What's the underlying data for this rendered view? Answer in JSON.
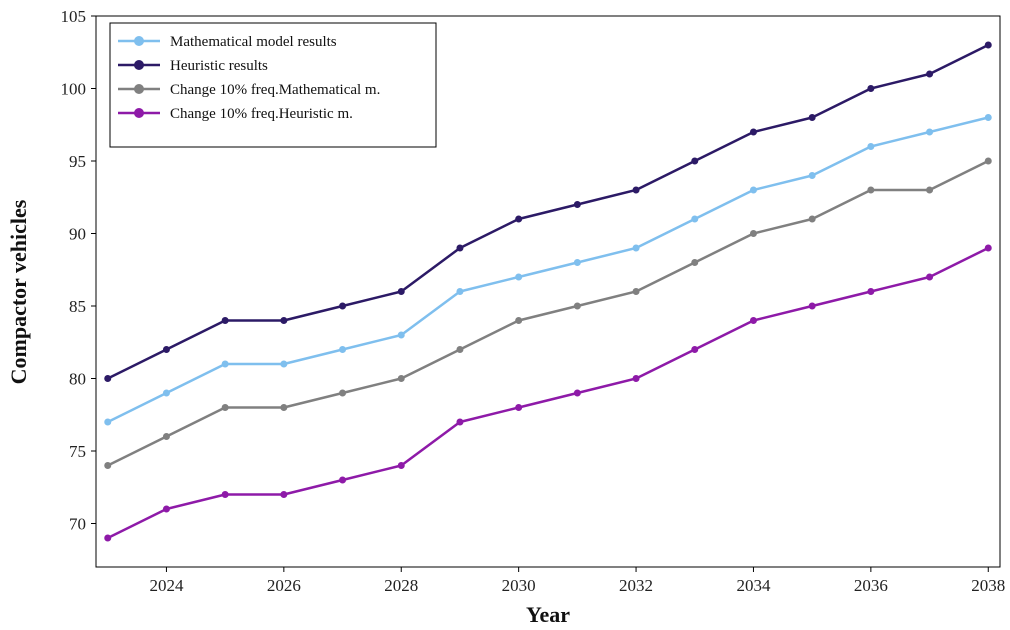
{
  "chart_data": {
    "type": "line",
    "xlabel": "Year",
    "ylabel": "Compactor vehicles",
    "xlim": [
      2022.8,
      2038.2
    ],
    "ylim": [
      67,
      105
    ],
    "x_ticks": [
      2024,
      2026,
      2028,
      2030,
      2032,
      2034,
      2036,
      2038
    ],
    "y_ticks": [
      70,
      75,
      80,
      85,
      90,
      95,
      100,
      105
    ],
    "legend_position": "top-left",
    "grid": false,
    "x": [
      2023,
      2024,
      2025,
      2026,
      2027,
      2028,
      2029,
      2030,
      2031,
      2032,
      2033,
      2034,
      2035,
      2036,
      2037,
      2038
    ],
    "series": [
      {
        "name": "Mathematical model results",
        "color": "#7fbfee",
        "values": [
          77,
          79,
          81,
          81,
          82,
          83,
          86,
          87,
          88,
          89,
          91,
          93,
          94,
          96,
          97,
          98
        ]
      },
      {
        "name": "Heuristic results",
        "color": "#2c1a66",
        "values": [
          80,
          82,
          84,
          84,
          85,
          86,
          89,
          91,
          92,
          93,
          95,
          97,
          98,
          100,
          101,
          103
        ]
      },
      {
        "name": "Change 10% freq.Mathematical m.",
        "color": "#808080",
        "values": [
          74,
          76,
          78,
          78,
          79,
          80,
          82,
          84,
          85,
          86,
          88,
          90,
          91,
          93,
          93,
          95
        ]
      },
      {
        "name": "Change 10% freq.Heuristic m.",
        "color": "#8e1aa8",
        "values": [
          69,
          71,
          72,
          72,
          73,
          74,
          77,
          78,
          79,
          80,
          82,
          84,
          85,
          86,
          87,
          89
        ]
      }
    ]
  }
}
